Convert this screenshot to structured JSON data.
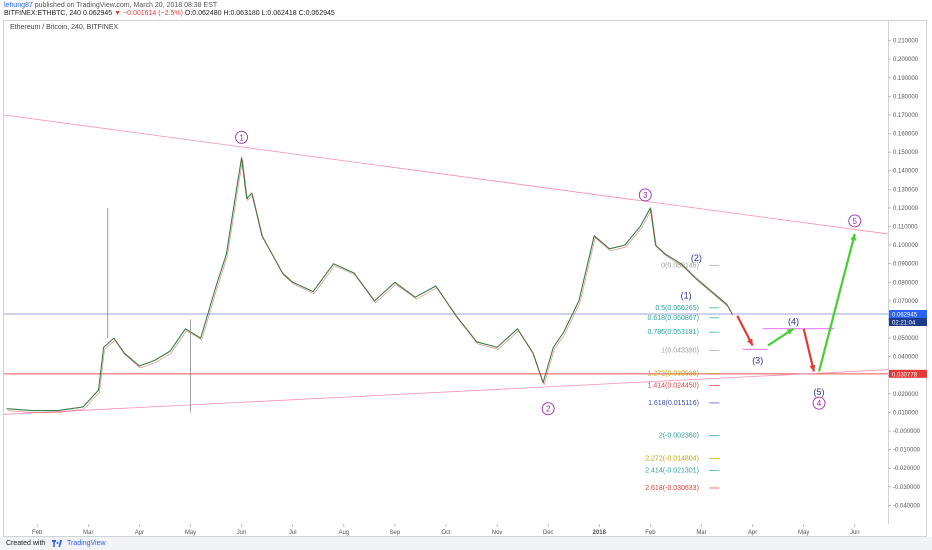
{
  "header": {
    "user": "lehung87",
    "published": "published on TradingView.com, March 20, 2018 08:38 EST",
    "symbol": "BITFINEX:ETHBTC, 240",
    "last": "0.062945",
    "change": "−0.001614 (−2.5%)",
    "ohlc": "O:0.062480 H:0.063180 L:0.062418 C:0.062945"
  },
  "legend": "Ethereum / Bitcoin, 240, BITFINEX",
  "footer": {
    "created_with": "Created with",
    "brand": "TradingView"
  },
  "chart_data": {
    "type": "line",
    "ylim": [
      -0.05,
      0.22
    ],
    "y_ticks": [
      "0.210000",
      "0.200000",
      "0.190000",
      "0.180000",
      "0.170000",
      "0.160000",
      "0.150000",
      "0.140000",
      "0.130000",
      "0.120000",
      "0.110000",
      "0.100000",
      "0.090000",
      "0.080000",
      "0.070000",
      "0.060000",
      "0.050000",
      "0.040000",
      "0.030000",
      "0.020000",
      "0.010000",
      "-0.000000",
      "-0.010000",
      "-0.020000",
      "-0.030000",
      "-0.040000"
    ],
    "y_tick_values": [
      0.21,
      0.2,
      0.19,
      0.18,
      0.17,
      0.16,
      0.15,
      0.14,
      0.13,
      0.12,
      0.11,
      0.1,
      0.09,
      0.08,
      0.07,
      0.06,
      0.05,
      0.04,
      0.03,
      0.02,
      0.01,
      0,
      -0.01,
      -0.02,
      -0.03,
      -0.04
    ],
    "x_ticks": [
      "Feb",
      "Mar",
      "Apr",
      "May",
      "Jun",
      "Jul",
      "Aug",
      "Sep",
      "Oct",
      "Nov",
      "Dec",
      "2018",
      "Feb",
      "Mar",
      "Apr",
      "May",
      "Jun"
    ],
    "x_tick_values": [
      1.0,
      2.0,
      3.0,
      4.0,
      5.0,
      6.0,
      7.0,
      8.0,
      9.0,
      10.0,
      11.0,
      12.0,
      13.0,
      14.0,
      15.0,
      16.0,
      17.0
    ],
    "xlim": [
      0.35,
      17.65
    ],
    "price_badge": "0.062945",
    "price_badge_countdown": "02:21:04",
    "support_badge": "0.030778",
    "support_level": 0.030778,
    "price_level": 0.062945,
    "price": {
      "x": [
        0.4,
        0.9,
        1.4,
        1.9,
        2.2,
        2.3,
        2.5,
        2.7,
        3.0,
        3.3,
        3.6,
        3.9,
        4.2,
        4.5,
        4.7,
        4.9,
        5.0,
        5.1,
        5.2,
        5.4,
        5.6,
        5.8,
        6.0,
        6.4,
        6.8,
        7.2,
        7.6,
        8.0,
        8.4,
        8.8,
        9.2,
        9.6,
        10.0,
        10.4,
        10.7,
        10.9,
        11.1,
        11.3,
        11.6,
        11.9,
        12.2,
        12.5,
        12.8,
        13.0,
        13.1,
        13.3,
        13.6,
        13.9,
        14.2,
        14.5,
        14.6
      ],
      "y": [
        0.012,
        0.011,
        0.011,
        0.013,
        0.022,
        0.045,
        0.05,
        0.042,
        0.035,
        0.038,
        0.043,
        0.055,
        0.05,
        0.078,
        0.095,
        0.13,
        0.147,
        0.125,
        0.128,
        0.105,
        0.095,
        0.085,
        0.08,
        0.075,
        0.09,
        0.085,
        0.07,
        0.08,
        0.072,
        0.078,
        0.062,
        0.048,
        0.045,
        0.055,
        0.042,
        0.026,
        0.045,
        0.053,
        0.07,
        0.105,
        0.098,
        0.1,
        0.11,
        0.12,
        0.1,
        0.095,
        0.09,
        0.082,
        0.075,
        0.068,
        0.063
      ]
    },
    "trendlines": [
      {
        "x": [
          0.35,
          17.65
        ],
        "y": [
          0.17,
          0.106
        ]
      },
      {
        "x": [
          0.35,
          17.65
        ],
        "y": [
          0.009,
          0.033
        ]
      }
    ],
    "fib_levels": [
      {
        "label": "0(0.089146)",
        "value": 0.089146,
        "color": "#9e9e9e"
      },
      {
        "label": "0.5(0.066265)",
        "value": 0.066265,
        "color": "#26a69a"
      },
      {
        "label": "0.618(0.060867)",
        "value": 0.060867,
        "color": "#26a69a"
      },
      {
        "label": "0.786(0.053181)",
        "value": 0.053181,
        "color": "#26a69a"
      },
      {
        "label": "1(0.043390)",
        "value": 0.04339,
        "color": "#9e9e9e"
      },
      {
        "label": "1.272(0.030938)",
        "value": 0.030938,
        "color": "#c0a400"
      },
      {
        "label": "1.414(0.024450)",
        "value": 0.02445,
        "color": "#e53935"
      },
      {
        "label": "1.618(0.015116)",
        "value": 0.015116,
        "color": "#3949ab"
      },
      {
        "label": "2(-0.002360)",
        "value": -0.00236,
        "color": "#26a69a"
      },
      {
        "label": "2.272(-0.014804)",
        "value": -0.014804,
        "color": "#c0a400"
      },
      {
        "label": "2.414(-0.021301)",
        "value": -0.021301,
        "color": "#26a69a"
      },
      {
        "label": "2.618(-0.030633)",
        "value": -0.030633,
        "color": "#e53935"
      }
    ],
    "wave_labels": [
      {
        "text": "1",
        "x": 5.0,
        "y": 0.158,
        "circled": true,
        "color": "#9c27b0"
      },
      {
        "text": "2",
        "x": 11.0,
        "y": 0.012,
        "circled": true,
        "color": "#9c27b0"
      },
      {
        "text": "3",
        "x": 12.9,
        "y": 0.127,
        "circled": true,
        "color": "#9c27b0"
      },
      {
        "text": "5",
        "x": 17.0,
        "y": 0.113,
        "circled": true,
        "color": "#9c27b0"
      },
      {
        "text": "4",
        "x": 16.3,
        "y": 0.015,
        "circled": true,
        "color": "#9c27b0"
      },
      {
        "text": "(1)",
        "x": 13.7,
        "y": 0.073,
        "circled": false,
        "color": "#283593"
      },
      {
        "text": "(2)",
        "x": 13.9,
        "y": 0.093,
        "circled": false,
        "color": "#283593"
      },
      {
        "text": "(3)",
        "x": 15.1,
        "y": 0.038,
        "circled": false,
        "color": "#283593"
      },
      {
        "text": "(4)",
        "x": 15.8,
        "y": 0.059,
        "circled": false,
        "color": "#283593"
      },
      {
        "text": "(5)",
        "x": 16.3,
        "y": 0.021,
        "circled": false,
        "color": "#283593"
      }
    ],
    "arrows": [
      {
        "x1": 14.7,
        "y1": 0.062,
        "x2": 15.0,
        "y2": 0.046,
        "color": "#e53935"
      },
      {
        "x1": 15.3,
        "y1": 0.046,
        "x2": 15.8,
        "y2": 0.055,
        "color": "#43d12f"
      },
      {
        "x1": 16.0,
        "y1": 0.055,
        "x2": 16.2,
        "y2": 0.032,
        "color": "#e53935"
      },
      {
        "x1": 16.3,
        "y1": 0.032,
        "x2": 17.0,
        "y2": 0.106,
        "color": "#43d12f"
      }
    ]
  }
}
